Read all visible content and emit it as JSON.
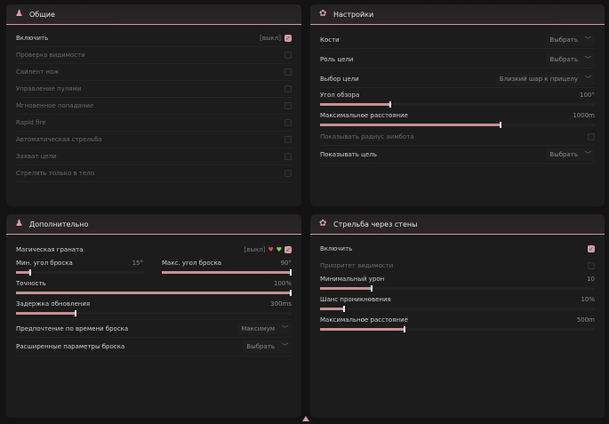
{
  "general": {
    "title": "Общие",
    "icon": "user-group-icon",
    "enable": {
      "label": "Включить",
      "bind": "[выкл]",
      "checked": true
    },
    "items": [
      {
        "label": "Проверка видимости",
        "checked": false
      },
      {
        "label": "Сайлент нож",
        "checked": false
      },
      {
        "label": "Управление пулями",
        "checked": false
      },
      {
        "label": "Мгновенное попадание",
        "checked": false
      },
      {
        "label": "Rapid fire",
        "checked": false
      },
      {
        "label": "Автоматическая стрельба",
        "checked": false
      },
      {
        "label": "Захват цели",
        "checked": false
      },
      {
        "label": "Стрелять только в тело",
        "checked": false
      }
    ]
  },
  "settings": {
    "title": "Настройки",
    "icon": "gear-icon",
    "bones": {
      "label": "Кости",
      "value": "Выбрать"
    },
    "target_role": {
      "label": "Роль цели",
      "value": "Выбрать"
    },
    "target_select": {
      "label": "Выбор цели",
      "value": "Близкий шар к прицелу"
    },
    "fov": {
      "label": "Угол обзора",
      "value": "100°",
      "fraction": 0.26
    },
    "max_distance": {
      "label": "Максимальное расстояние",
      "value": "1000m",
      "fraction": 0.66
    },
    "show_radius": {
      "label": "Показывать радиус аимбота",
      "checked": false
    },
    "show_target": {
      "label": "Показывать цель",
      "value": "Выбрать"
    }
  },
  "extra": {
    "title": "Дополнительно",
    "icon": "user-group-icon",
    "grenade": {
      "label": "Магическая граната",
      "bind": "[выкл]",
      "checked": true
    },
    "min_angle": {
      "label": "Мин. угол броска",
      "value": "15°",
      "fraction": 0.12
    },
    "max_angle": {
      "label": "Макс. угол броска",
      "value": "90°",
      "fraction": 1.0
    },
    "accuracy": {
      "label": "Точность",
      "value": "100%",
      "fraction": 1.0
    },
    "delay": {
      "label": "Задержка обновления",
      "value": "300ms",
      "fraction": 0.22
    },
    "time_pref": {
      "label": "Предпочтение по времени броска",
      "value": "Максимум"
    },
    "adv": {
      "label": "Расширенные параметры броска",
      "value": "Выбрать"
    }
  },
  "wall": {
    "title": "Стрельба через стены",
    "icon": "gear-icon",
    "enable": {
      "label": "Включить",
      "checked": true
    },
    "priority": {
      "label": "Приоритет видимости",
      "checked": false
    },
    "min_damage": {
      "label": "Минимальный урон",
      "value": "10",
      "fraction": 0.19
    },
    "chance": {
      "label": "Шанс проникновения",
      "value": "10%",
      "fraction": 0.09
    },
    "max_distance": {
      "label": "Максимальное расстояние",
      "value": "500m",
      "fraction": 0.31
    }
  },
  "accent": "#c98f92"
}
